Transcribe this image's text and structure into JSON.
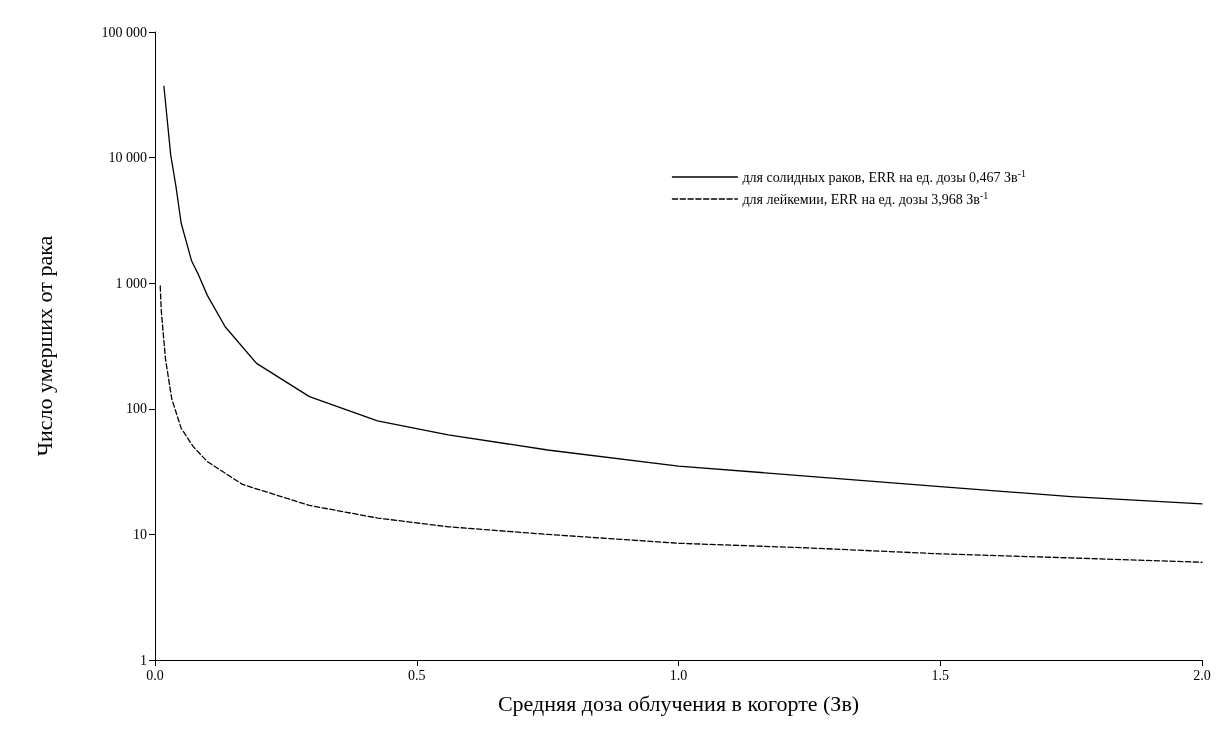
{
  "chart_data": {
    "type": "line",
    "xlabel": "Средняя доза облучения в когорте (Зв)",
    "ylabel": "Число умерших от рака",
    "log": "y",
    "xlim": [
      0,
      2
    ],
    "xticks": [
      {
        "value": 0,
        "label": "0.0"
      },
      {
        "value": 0.5,
        "label": "0.5"
      },
      {
        "value": 1,
        "label": "1.0"
      },
      {
        "value": 1.5,
        "label": "1.5"
      },
      {
        "value": 2,
        "label": "2.0"
      }
    ],
    "ylim": [
      1,
      100000
    ],
    "yticks": [
      {
        "value": 1,
        "label": "1"
      },
      {
        "value": 10,
        "label": "10"
      },
      {
        "value": 100,
        "label": "100"
      },
      {
        "value": 1000,
        "label": "1 000"
      },
      {
        "value": 10000,
        "label": "10 000"
      },
      {
        "value": 100000,
        "label": "100 000"
      }
    ],
    "grid": false,
    "legend": "top right",
    "marker": "none",
    "series": [
      {
        "name": "для солидных раков, ERR на ед. дозы 0,467 Зв$^{-1}$",
        "color": "#000000",
        "line_style": "solid",
        "x": [
          0.017,
          0.03,
          0.04,
          0.05,
          0.07,
          0.083,
          0.1,
          0.134,
          0.194,
          0.295,
          0.425,
          0.56,
          0.75,
          1.0,
          1.25,
          1.5,
          1.75,
          2.0
        ],
        "values": [
          37000,
          10500,
          5900,
          3000,
          1500,
          1170,
          800,
          450,
          230,
          125,
          80,
          62,
          47,
          35,
          29,
          24,
          20,
          17.5
        ]
      },
      {
        "name": "для лейкемии, ERR на ед. дозы 3,968 Зв$^{-1}$",
        "color": "#000000",
        "line_style": "dashed",
        "x": [
          0.01,
          0.012,
          0.02,
          0.032,
          0.05,
          0.073,
          0.1,
          0.167,
          0.295,
          0.425,
          0.56,
          0.75,
          1.0,
          1.25,
          1.5,
          1.75,
          2.0
        ],
        "values": [
          950,
          600,
          250,
          120,
          70,
          50,
          38,
          25,
          17,
          13.5,
          11.5,
          10,
          8.5,
          7.8,
          7,
          6.5,
          6
        ]
      }
    ]
  }
}
